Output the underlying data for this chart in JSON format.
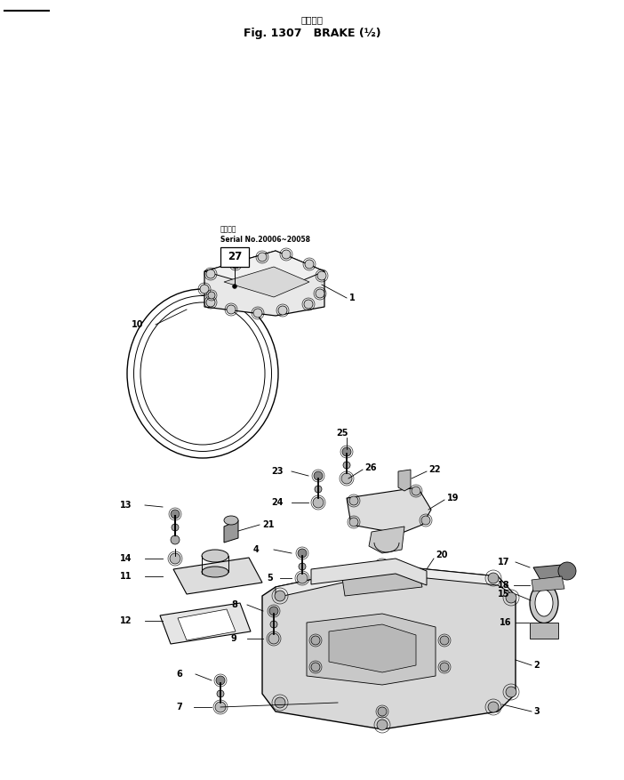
{
  "title_japanese": "ブレーキ",
  "title_english": "Fig. 1307   BRAKE (½)",
  "background_color": "#ffffff",
  "line_color": "#000000",
  "serial_line1": "適用号等",
  "serial_line2": "Serial No.20006~20058",
  "part_number_box": "27",
  "fig_width": 7.02,
  "fig_height": 8.77,
  "dpi": 100
}
